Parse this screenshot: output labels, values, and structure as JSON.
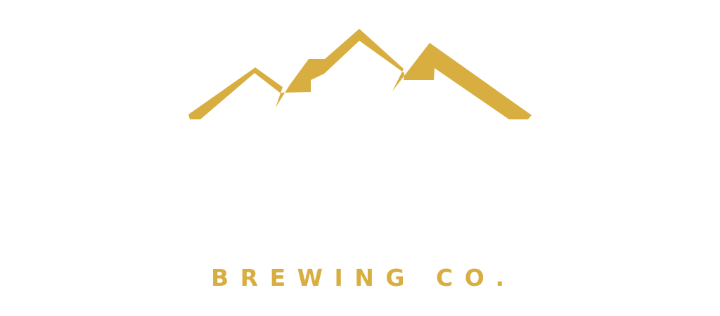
{
  "logo": {
    "accent_color": "#D9AE41",
    "background_color": "#FFFFFF",
    "mark_icon": "mountain-peaks-icon",
    "tagline": "BREWING CO."
  }
}
